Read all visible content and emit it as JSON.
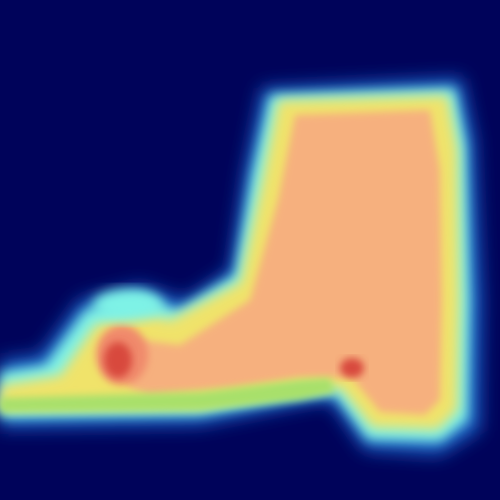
{
  "image": {
    "subject": "boot-heatmap",
    "colormap": "jet",
    "colors": {
      "background": "#00035a",
      "cold_blue": "#1e64c8",
      "cyan": "#7ef2e6",
      "green": "#a8e06a",
      "yellow": "#f0e36a",
      "warm_peach": "#f6b07e",
      "hot_salmon": "#f08a6c",
      "hot_red": "#d8483e"
    }
  }
}
